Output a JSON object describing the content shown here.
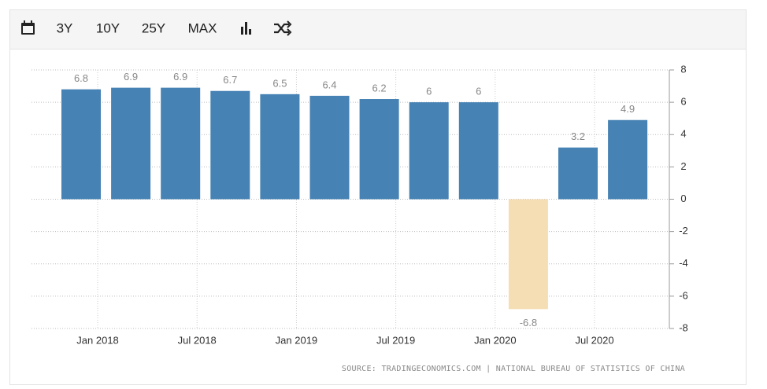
{
  "toolbar": {
    "ranges": [
      "3Y",
      "10Y",
      "25Y",
      "MAX"
    ]
  },
  "chart_data": {
    "type": "bar",
    "categories": [
      null,
      null,
      null,
      null,
      null,
      null,
      null,
      null,
      null,
      null,
      null,
      null
    ],
    "values": [
      6.8,
      6.9,
      6.9,
      6.7,
      6.5,
      6.4,
      6.2,
      6,
      6,
      -6.8,
      3.2,
      4.9
    ],
    "color": "#4682b4",
    "negative_color": "#f5deb3",
    "xticks": [
      "Jan 2018",
      "Jul 2018",
      "Jan 2019",
      "Jul 2019",
      "Jan 2020",
      "Jul 2020"
    ],
    "ylim": [
      -8,
      8
    ],
    "yticks": [
      -8,
      -6,
      -4,
      -2,
      0,
      2,
      4,
      6,
      8
    ],
    "grid": true,
    "source": "SOURCE: TRADINGECONOMICS.COM | NATIONAL BUREAU OF STATISTICS OF CHINA"
  }
}
